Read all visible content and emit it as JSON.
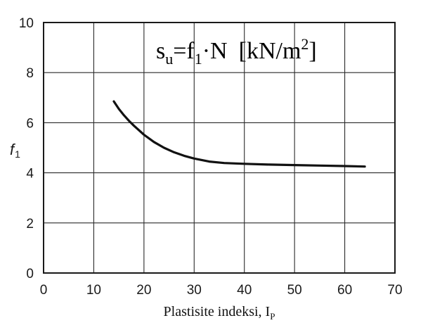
{
  "chart_data": {
    "type": "line",
    "title": "",
    "xlabel": "Plastisite indeksi, I",
    "xlabel_subscript": "P",
    "ylabel": "f",
    "ylabel_subscript": "1",
    "xlim": [
      0,
      70
    ],
    "ylim": [
      0,
      10
    ],
    "xticks": [
      0,
      10,
      20,
      30,
      40,
      50,
      60,
      70
    ],
    "yticks": [
      0,
      2,
      4,
      6,
      8,
      10
    ],
    "grid": true,
    "annotation": {
      "s": "s",
      "s_sub": "u",
      "eq": "=f",
      "f_sub": "1",
      "dot_n": "·N",
      "unit_open": "[kN/m",
      "unit_sup": "2",
      "unit_close": "]"
    },
    "series": [
      {
        "color": "#111111",
        "x": [
          14,
          15,
          16,
          17,
          18,
          20,
          22,
          24,
          26,
          28,
          30,
          33,
          36,
          40,
          45,
          50,
          55,
          60,
          64
        ],
        "y": [
          6.85,
          6.55,
          6.3,
          6.08,
          5.88,
          5.52,
          5.23,
          5.0,
          4.82,
          4.68,
          4.57,
          4.45,
          4.39,
          4.36,
          4.33,
          4.31,
          4.29,
          4.27,
          4.25
        ]
      }
    ]
  }
}
